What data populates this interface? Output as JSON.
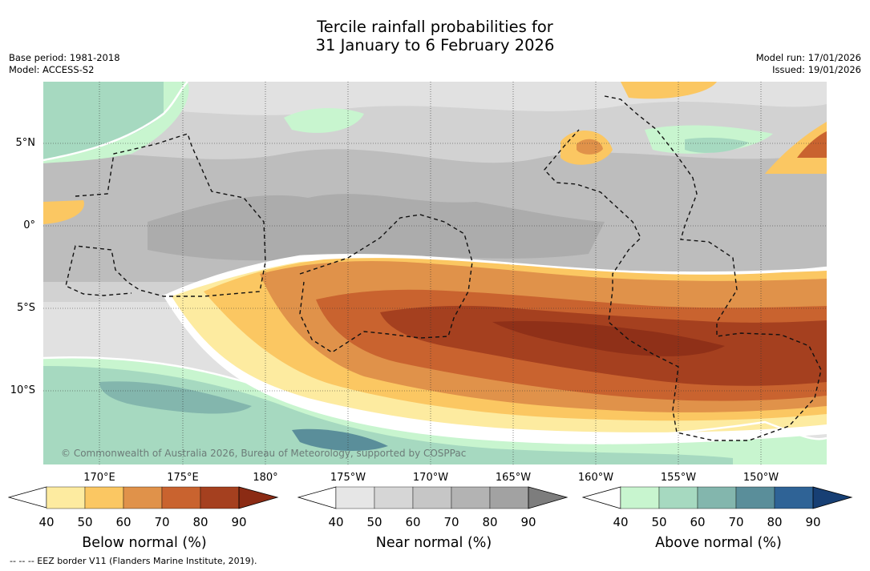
{
  "title": {
    "line1": "Tercile rainfall probabilities for",
    "line2": "31 January to 6 February 2026"
  },
  "meta": {
    "base_period": "Base period: 1981-2018",
    "model": "Model: ACCESS-S2",
    "model_run": "Model run: 17/01/2026",
    "issued": "Issued: 19/01/2026"
  },
  "axes": {
    "lat_labels": [
      "5°N",
      "0°",
      "5°S",
      "10°S"
    ],
    "lon_labels": [
      "170°E",
      "175°E",
      "180°",
      "175°W",
      "170°W",
      "165°W",
      "160°W",
      "155°W",
      "150°W"
    ]
  },
  "map": {
    "copyright": "© Commonwealth of Australia 2026, Bureau of Meteorology, supported by COSPPac"
  },
  "colorbars": [
    {
      "label": "Below normal (%)",
      "ticks": [
        "40",
        "50",
        "60",
        "70",
        "80",
        "90"
      ],
      "colors": [
        "#ffffff",
        "#fdeba0",
        "#fbc762",
        "#e0924a",
        "#c9632f",
        "#a5401f",
        "#8b2b14"
      ]
    },
    {
      "label": "Near normal (%)",
      "ticks": [
        "40",
        "50",
        "60",
        "70",
        "80",
        "90"
      ],
      "colors": [
        "#ffffff",
        "#e6e6e6",
        "#d6d6d6",
        "#c6c6c6",
        "#b3b3b3",
        "#a2a2a2",
        "#7d7d7d"
      ]
    },
    {
      "label": "Above normal (%)",
      "ticks": [
        "40",
        "50",
        "60",
        "70",
        "80",
        "90"
      ],
      "colors": [
        "#ffffff",
        "#c8f5cf",
        "#a6d9c0",
        "#83b6ad",
        "#5a8e9a",
        "#2f6396",
        "#173f74"
      ]
    }
  ],
  "footer": {
    "eez_note": "--  --  -- EEZ border V11 (Flanders Marine Institute, 2019)."
  }
}
